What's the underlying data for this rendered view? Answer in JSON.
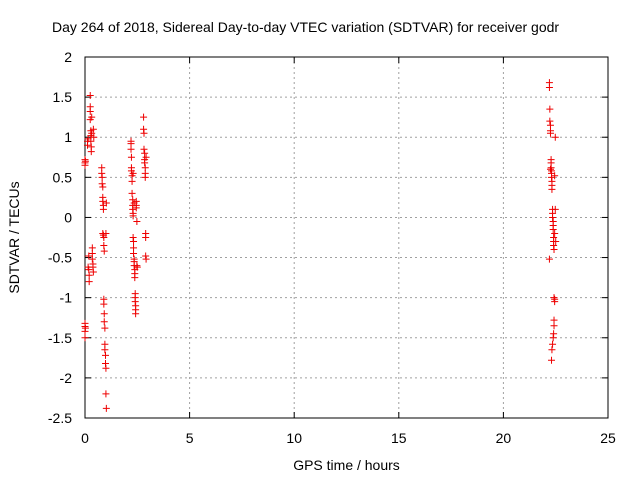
{
  "chart_data": {
    "type": "scatter",
    "title": "Day 264 of 2018, Sidereal Day-to-day VTEC variation (SDTVAR) for receiver godr",
    "xlabel": "GPS time / hours",
    "ylabel": "SDTVAR / TECUs",
    "xlim": [
      0,
      25
    ],
    "ylim": [
      -2.5,
      2
    ],
    "xticks": [
      "0",
      "5",
      "10",
      "15",
      "20",
      "25"
    ],
    "yticks": [
      "2",
      "1.5",
      "1",
      "0.5",
      "0",
      "-0.5",
      "-1",
      "-1.5",
      "-2",
      "-2.5"
    ],
    "grid": true,
    "marker": "+",
    "color": "#ee0000",
    "series": [
      {
        "name": "SDTVAR",
        "points": [
          [
            0.0,
            0.72
          ],
          [
            0.0,
            0.68
          ],
          [
            0.0,
            0.65
          ],
          [
            0.0,
            -1.32
          ],
          [
            0.0,
            -1.36
          ],
          [
            0.0,
            -1.42
          ],
          [
            0.0,
            -1.5
          ],
          [
            0.02,
            0.7
          ],
          [
            0.02,
            -1.38
          ],
          [
            0.12,
            0.95
          ],
          [
            0.12,
            0.9
          ],
          [
            0.15,
            0.98
          ],
          [
            0.15,
            -0.62
          ],
          [
            0.18,
            -0.48
          ],
          [
            0.18,
            -0.65
          ],
          [
            0.2,
            -0.72
          ],
          [
            0.2,
            -0.8
          ],
          [
            0.25,
            1.52
          ],
          [
            0.25,
            1.38
          ],
          [
            0.25,
            1.32
          ],
          [
            0.25,
            1.22
          ],
          [
            0.28,
            1.08
          ],
          [
            0.28,
            1.02
          ],
          [
            0.28,
            0.95
          ],
          [
            0.3,
            0.88
          ],
          [
            0.3,
            0.82
          ],
          [
            0.32,
            1.25
          ],
          [
            0.32,
            1.05
          ],
          [
            0.35,
            -0.38
          ],
          [
            0.35,
            -0.45
          ],
          [
            0.35,
            -0.52
          ],
          [
            0.38,
            -0.58
          ],
          [
            0.38,
            -0.62
          ],
          [
            0.4,
            -0.68
          ],
          [
            0.4,
            1.1
          ],
          [
            0.42,
            1.0
          ],
          [
            0.8,
            0.62
          ],
          [
            0.8,
            0.55
          ],
          [
            0.82,
            0.5
          ],
          [
            0.82,
            0.42
          ],
          [
            0.85,
            0.38
          ],
          [
            0.85,
            0.25
          ],
          [
            0.85,
            0.2
          ],
          [
            0.88,
            0.15
          ],
          [
            0.88,
            0.1
          ],
          [
            0.85,
            -0.2
          ],
          [
            0.88,
            -0.22
          ],
          [
            0.9,
            -0.25
          ],
          [
            0.9,
            -0.35
          ],
          [
            0.92,
            -0.42
          ],
          [
            0.9,
            -1.02
          ],
          [
            0.9,
            -1.08
          ],
          [
            0.92,
            -1.2
          ],
          [
            0.92,
            -1.3
          ],
          [
            0.95,
            -1.38
          ],
          [
            0.95,
            -1.58
          ],
          [
            0.95,
            -1.65
          ],
          [
            0.98,
            -1.72
          ],
          [
            0.98,
            -1.82
          ],
          [
            1.0,
            -1.88
          ],
          [
            1.0,
            -2.2
          ],
          [
            1.02,
            -2.38
          ],
          [
            1.0,
            -0.2
          ],
          [
            1.02,
            0.18
          ],
          [
            2.2,
            0.95
          ],
          [
            2.2,
            0.92
          ],
          [
            2.2,
            0.85
          ],
          [
            2.22,
            0.75
          ],
          [
            2.22,
            0.62
          ],
          [
            2.22,
            0.58
          ],
          [
            2.25,
            0.52
          ],
          [
            2.25,
            0.45
          ],
          [
            2.25,
            0.3
          ],
          [
            2.28,
            0.22
          ],
          [
            2.28,
            0.15
          ],
          [
            2.28,
            0.1
          ],
          [
            2.3,
            0.05
          ],
          [
            2.3,
            0.02
          ],
          [
            2.3,
            -0.25
          ],
          [
            2.32,
            -0.3
          ],
          [
            2.32,
            -0.38
          ],
          [
            2.32,
            -0.45
          ],
          [
            2.35,
            -0.52
          ],
          [
            2.35,
            -0.55
          ],
          [
            2.35,
            -0.6
          ],
          [
            2.38,
            -0.65
          ],
          [
            2.38,
            -0.7
          ],
          [
            2.38,
            -0.75
          ],
          [
            2.4,
            -0.95
          ],
          [
            2.4,
            -1.0
          ],
          [
            2.4,
            -1.05
          ],
          [
            2.42,
            -1.1
          ],
          [
            2.42,
            -1.15
          ],
          [
            2.42,
            -1.2
          ],
          [
            2.45,
            0.2
          ],
          [
            2.45,
            0.15
          ],
          [
            2.45,
            0.12
          ],
          [
            2.48,
            -0.05
          ],
          [
            2.48,
            -0.6
          ],
          [
            2.5,
            -0.62
          ],
          [
            2.3,
            0.55
          ],
          [
            2.35,
            0.18
          ],
          [
            2.8,
            1.25
          ],
          [
            2.8,
            1.1
          ],
          [
            2.82,
            1.05
          ],
          [
            2.82,
            0.85
          ],
          [
            2.85,
            0.8
          ],
          [
            2.85,
            0.72
          ],
          [
            2.85,
            0.68
          ],
          [
            2.88,
            0.62
          ],
          [
            2.88,
            0.55
          ],
          [
            2.88,
            0.5
          ],
          [
            2.9,
            -0.2
          ],
          [
            2.9,
            -0.25
          ],
          [
            2.9,
            -0.48
          ],
          [
            2.92,
            -0.52
          ],
          [
            2.92,
            0.75
          ],
          [
            22.2,
            1.68
          ],
          [
            22.2,
            1.62
          ],
          [
            22.22,
            1.35
          ],
          [
            22.22,
            1.2
          ],
          [
            22.25,
            1.15
          ],
          [
            22.25,
            1.08
          ],
          [
            22.25,
            1.05
          ],
          [
            22.28,
            0.72
          ],
          [
            22.28,
            0.68
          ],
          [
            22.28,
            0.62
          ],
          [
            22.3,
            0.58
          ],
          [
            22.3,
            0.55
          ],
          [
            22.3,
            0.5
          ],
          [
            22.32,
            0.45
          ],
          [
            22.32,
            0.4
          ],
          [
            22.32,
            0.35
          ],
          [
            22.35,
            0.1
          ],
          [
            22.35,
            0.05
          ],
          [
            22.35,
            0.0
          ],
          [
            22.38,
            -0.05
          ],
          [
            22.38,
            -0.1
          ],
          [
            22.38,
            -0.15
          ],
          [
            22.4,
            -0.25
          ],
          [
            22.4,
            -0.3
          ],
          [
            22.4,
            -0.35
          ],
          [
            22.42,
            -0.4
          ],
          [
            22.2,
            -0.52
          ],
          [
            22.42,
            -1.0
          ],
          [
            22.45,
            -1.02
          ],
          [
            22.45,
            -1.05
          ],
          [
            22.42,
            -1.28
          ],
          [
            22.42,
            -1.35
          ],
          [
            22.4,
            -1.45
          ],
          [
            22.38,
            -1.5
          ],
          [
            22.35,
            -1.58
          ],
          [
            22.32,
            -1.65
          ],
          [
            22.3,
            -1.78
          ],
          [
            22.48,
            1.0
          ],
          [
            22.48,
            0.1
          ],
          [
            22.5,
            -0.3
          ],
          [
            22.45,
            0.52
          ],
          [
            22.45,
            -0.2
          ],
          [
            22.25,
            0.6
          ]
        ]
      }
    ]
  }
}
